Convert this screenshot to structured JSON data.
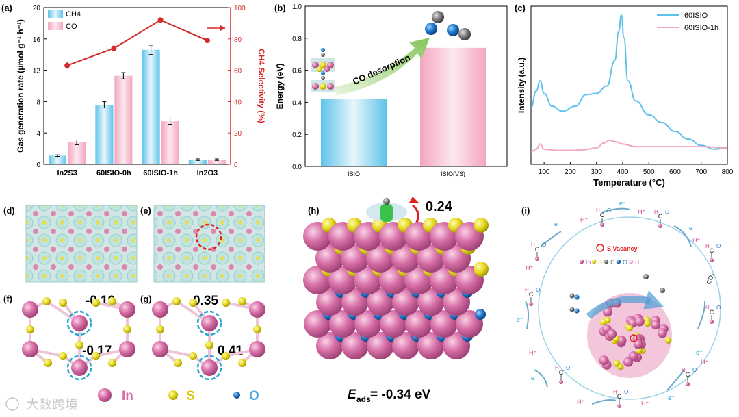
{
  "panel_labels": {
    "a": "(a)",
    "b": "(b)",
    "c": "(c)",
    "d": "(d)",
    "e": "(e)",
    "f": "(f)",
    "g": "(g)",
    "h": "(h)",
    "i": "(i)"
  },
  "colors": {
    "ch4_bar": "#7ec8ee",
    "co_bar": "#f7b6cc",
    "selectivity": "#d42a2a",
    "line_60isio": "#5ec3ea",
    "line_60isio1h": "#f4a6c0",
    "in": "#d56fa3",
    "s": "#e6dc1c",
    "o": "#1f74c4",
    "c": "#6f6f6f"
  },
  "chart_data": [
    {
      "type": "bar",
      "panel": "a",
      "categories": [
        "In2S3",
        "60ISIO-0h",
        "60ISIO-1h",
        "In2O3"
      ],
      "series": [
        {
          "name": "CH4",
          "values": [
            1.1,
            7.6,
            14.6,
            0.6
          ],
          "errors": [
            0.1,
            0.4,
            0.6,
            0.1
          ]
        },
        {
          "name": "CO",
          "values": [
            2.8,
            11.3,
            5.5,
            0.6
          ],
          "errors": [
            0.3,
            0.4,
            0.4,
            0.1
          ]
        }
      ],
      "secondary_series": {
        "name": "CH4 Selectivity",
        "values": [
          63,
          74,
          92,
          79
        ],
        "errors": [
          2,
          1,
          1,
          1
        ]
      },
      "ylabel": "Gas generation rate (μmol g⁻¹ h⁻¹)",
      "ylabel_right": "CH4 Selectivity (%)",
      "ylim": [
        0,
        20
      ],
      "ylim_right": [
        0,
        100
      ],
      "yticks": [
        "0",
        "4",
        "8",
        "12",
        "16",
        "20"
      ],
      "yticks_right": [
        "0",
        "20",
        "40",
        "60",
        "80",
        "100"
      ],
      "legend": [
        "CH4",
        "CO"
      ]
    },
    {
      "type": "bar",
      "panel": "b",
      "categories": [
        "ISIO",
        "ISIO(VS)"
      ],
      "values": [
        0.42,
        0.74
      ],
      "ylabel": "Energy (eV)",
      "ylim": [
        0,
        1.0
      ],
      "yticks": [
        "0.0",
        "0.2",
        "0.4",
        "0.6",
        "0.8",
        "1.0"
      ],
      "annotation": "CO desorption"
    },
    {
      "type": "line",
      "panel": "c",
      "series": [
        {
          "name": "60ISIO",
          "x": [
            50,
            70,
            85,
            100,
            130,
            170,
            220,
            260,
            300,
            340,
            370,
            385,
            395,
            405,
            420,
            450,
            500,
            550,
            600,
            650,
            700,
            750,
            800
          ],
          "y": [
            0.45,
            0.58,
            0.66,
            0.56,
            0.46,
            0.42,
            0.46,
            0.55,
            0.56,
            0.62,
            0.82,
            1.05,
            1.18,
            1.0,
            0.66,
            0.5,
            0.39,
            0.33,
            0.26,
            0.2,
            0.15,
            0.12,
            0.13
          ]
        },
        {
          "name": "60ISIO-1h",
          "x": [
            50,
            70,
            85,
            100,
            150,
            200,
            250,
            300,
            330,
            350,
            370,
            400,
            450,
            500,
            600,
            700,
            800
          ],
          "y": [
            0.1,
            0.12,
            0.16,
            0.12,
            0.11,
            0.11,
            0.115,
            0.13,
            0.17,
            0.19,
            0.18,
            0.16,
            0.14,
            0.14,
            0.14,
            0.14,
            0.13
          ]
        }
      ],
      "xlabel": "Temperature (°C)",
      "ylabel": "Intensity (a.u.)",
      "xlim": [
        50,
        800
      ],
      "ylim": [
        0,
        1.25
      ],
      "xticks": [
        "100",
        "200",
        "300",
        "400",
        "500",
        "600",
        "700",
        "800"
      ],
      "legend": [
        "60ISIO",
        "60ISIO-1h"
      ]
    }
  ],
  "panel_f": {
    "charges": [
      "-0.19",
      "-0.17"
    ]
  },
  "panel_g": {
    "charges": [
      "0.35",
      "0.41"
    ]
  },
  "panel_h": {
    "charge": "0.24",
    "eads_label": "E",
    "eads_sub": "ads",
    "eads_value": " = -0.34 eV"
  },
  "legend_atoms": {
    "in": "In",
    "s": "S",
    "o": "O"
  },
  "panel_i": {
    "legend_title": "S Vacancy",
    "legend_atoms": [
      "In",
      "S",
      "C",
      "O",
      "H"
    ],
    "labels": {
      "eminus": "e⁻",
      "hplus": "H⁺",
      "co2": "CO₂",
      "h": "H",
      "c": "C",
      "o": "O"
    }
  },
  "watermark": "大数跨境"
}
